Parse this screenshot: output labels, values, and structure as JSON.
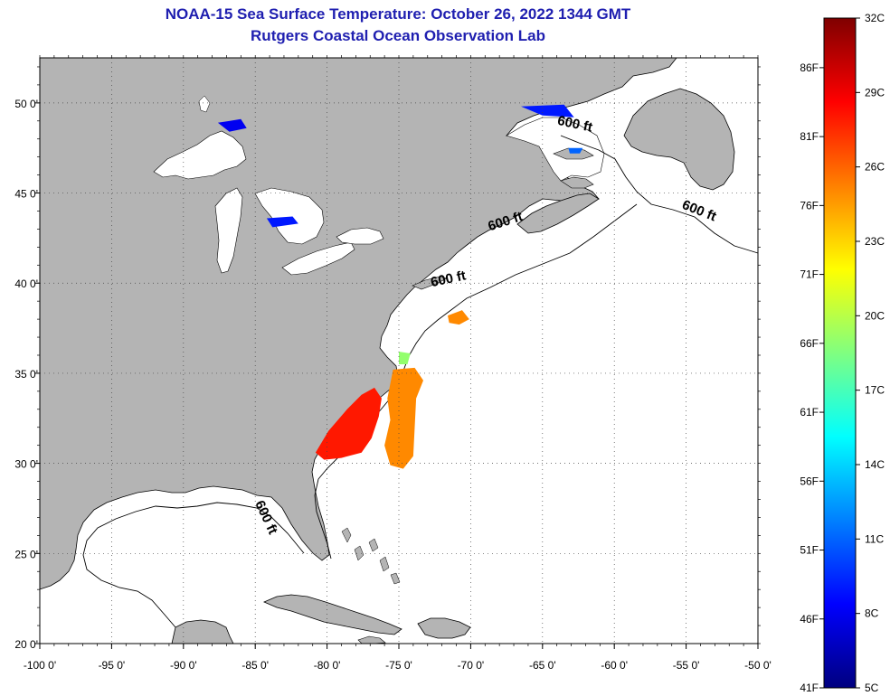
{
  "header": {
    "title": "NOAA-15 Sea Surface Temperature:  October 26, 2022 1344 GMT",
    "subtitle": "Rutgers Coastal Ocean Observation Lab"
  },
  "map": {
    "lon_range": [
      -100,
      -50
    ],
    "lat_range": [
      20,
      52.5
    ],
    "x_ticks": [
      {
        "value": -100,
        "label": "-100 0'"
      },
      {
        "value": -95,
        "label": "-95 0'"
      },
      {
        "value": -90,
        "label": "-90 0'"
      },
      {
        "value": -85,
        "label": "-85 0'"
      },
      {
        "value": -80,
        "label": "-80 0'"
      },
      {
        "value": -75,
        "label": "-75 0'"
      },
      {
        "value": -70,
        "label": "-70 0'"
      },
      {
        "value": -65,
        "label": "-65 0'"
      },
      {
        "value": -60,
        "label": "-60 0'"
      },
      {
        "value": -55,
        "label": "-55 0'"
      },
      {
        "value": -50,
        "label": "-50 0'"
      }
    ],
    "y_ticks": [
      {
        "value": 50,
        "label": "50 0'"
      },
      {
        "value": 45,
        "label": "45 0'"
      },
      {
        "value": 40,
        "label": "40 0'"
      },
      {
        "value": 35,
        "label": "35 0'"
      },
      {
        "value": 30,
        "label": "30 0'"
      },
      {
        "value": 25,
        "label": "25 0'"
      },
      {
        "value": 20,
        "label": "20 0'"
      }
    ],
    "land_color": "#b4b4b4",
    "ocean_color": "#ffffff",
    "contours": [
      {
        "label": "600 ft",
        "lon": -62.8,
        "lat": 48.6,
        "rotate": 12
      },
      {
        "label": "600 ft",
        "lon": -54.2,
        "lat": 43.8,
        "rotate": 22
      },
      {
        "label": "600 ft",
        "lon": -67.5,
        "lat": 43.2,
        "rotate": -18
      },
      {
        "label": "600 ft",
        "lon": -71.5,
        "lat": 40.0,
        "rotate": -12
      },
      {
        "label": "600 ft",
        "lon": -84.5,
        "lat": 26.9,
        "rotate": 65
      }
    ],
    "sst_patches": [
      {
        "lon": -78.0,
        "lat": 31.7,
        "temp_c": 28
      },
      {
        "lon": -74.7,
        "lat": 32.2,
        "temp_c": 25
      },
      {
        "lon": -70.7,
        "lat": 38.0,
        "temp_c": 25
      },
      {
        "lon": -74.5,
        "lat": 35.8,
        "temp_c": 19
      },
      {
        "lon": -86.5,
        "lat": 48.8,
        "temp_c": 8
      },
      {
        "lon": -83.2,
        "lat": 43.4,
        "temp_c": 9
      },
      {
        "lon": -64.5,
        "lat": 49.6,
        "temp_c": 9
      },
      {
        "lon": -62.7,
        "lat": 47.4,
        "temp_c": 11
      }
    ]
  },
  "colorbar": {
    "celsius": [
      {
        "value": 32,
        "label": "32C"
      },
      {
        "value": 29,
        "label": "29C"
      },
      {
        "value": 26,
        "label": "26C"
      },
      {
        "value": 23,
        "label": "23C"
      },
      {
        "value": 20,
        "label": "20C"
      },
      {
        "value": 17,
        "label": "17C"
      },
      {
        "value": 14,
        "label": "14C"
      },
      {
        "value": 11,
        "label": "11C"
      },
      {
        "value": 8,
        "label": "8C"
      },
      {
        "value": 5,
        "label": "5C"
      }
    ],
    "fahrenheit": [
      {
        "value": 86,
        "label": "86F"
      },
      {
        "value": 81,
        "label": "81F"
      },
      {
        "value": 76,
        "label": "76F"
      },
      {
        "value": 71,
        "label": "71F"
      },
      {
        "value": 66,
        "label": "66F"
      },
      {
        "value": 61,
        "label": "61F"
      },
      {
        "value": 56,
        "label": "56F"
      },
      {
        "value": 51,
        "label": "51F"
      },
      {
        "value": 46,
        "label": "46F"
      },
      {
        "value": 41,
        "label": "41F"
      }
    ],
    "range_c": [
      5,
      32
    ],
    "colors": [
      "#00007f",
      "#0000ff",
      "#0080ff",
      "#00ffff",
      "#80ff80",
      "#ffff00",
      "#ff8000",
      "#ff0000",
      "#7f0000"
    ]
  }
}
